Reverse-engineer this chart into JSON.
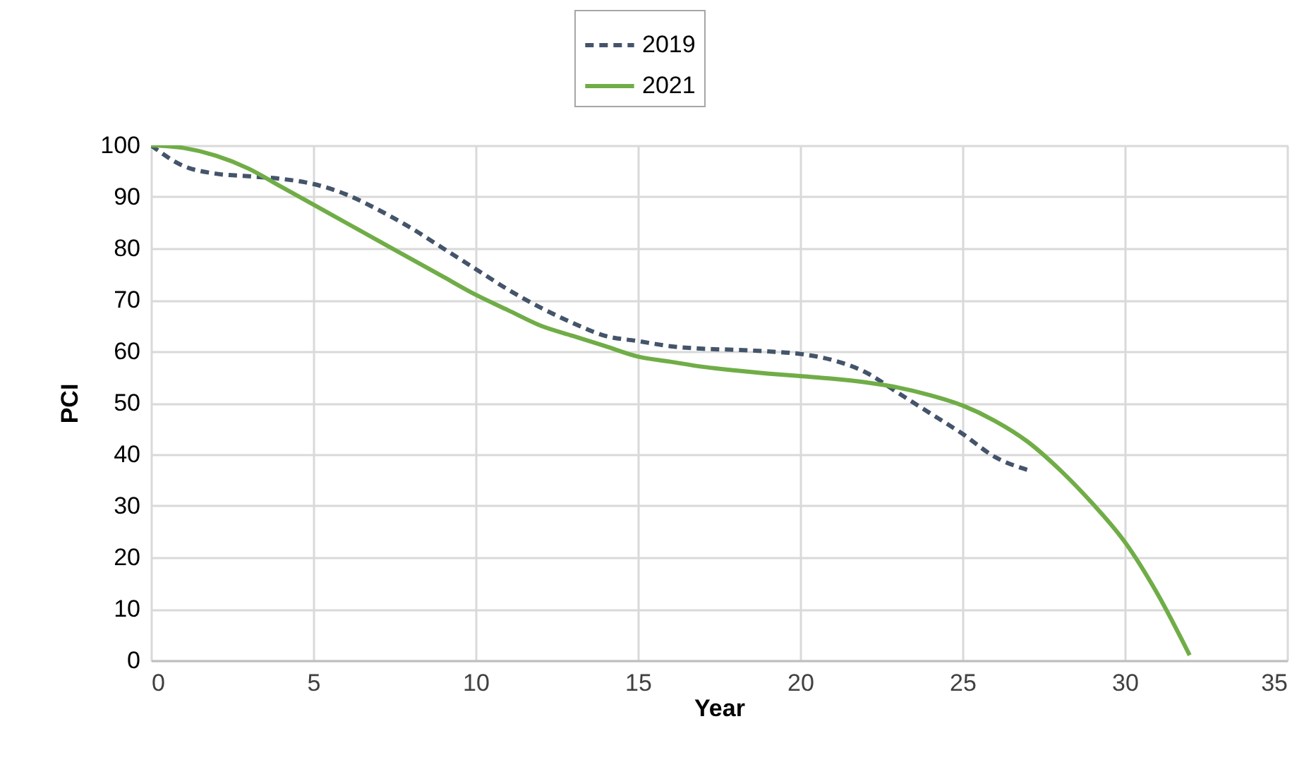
{
  "chart_data": {
    "type": "line",
    "xlabel": "Year",
    "ylabel": "PCI",
    "xlim": [
      0,
      35
    ],
    "xticks": [
      0,
      5,
      10,
      15,
      20,
      25,
      30,
      35
    ],
    "ylim": [
      0,
      100
    ],
    "yticks": [
      0,
      10,
      20,
      30,
      40,
      50,
      60,
      70,
      80,
      90,
      100
    ],
    "grid": true,
    "legend": "top",
    "marker": "none",
    "series": [
      {
        "name": "2019",
        "color": "#44546a",
        "line_style": "dashed",
        "x": [
          0,
          1,
          2,
          3,
          4,
          5,
          6,
          7,
          8,
          9,
          10,
          11,
          12,
          13,
          14,
          15,
          16,
          17,
          18,
          19,
          20,
          21,
          22,
          23,
          24,
          25,
          26,
          27
        ],
        "values": [
          100,
          96,
          94.5,
          94,
          93.5,
          92.5,
          90.5,
          87.5,
          84,
          80,
          76,
          72,
          68.5,
          65.5,
          63,
          62,
          61,
          60.5,
          60.3,
          60,
          59.5,
          58.3,
          56,
          52,
          48,
          44,
          39.5,
          37
        ]
      },
      {
        "name": "2021",
        "color": "#70ad47",
        "line_style": "solid",
        "x": [
          0,
          1,
          2,
          3,
          4,
          5,
          6,
          7,
          8,
          9,
          10,
          11,
          12,
          13,
          14,
          15,
          16,
          17,
          18,
          19,
          20,
          21,
          22,
          23,
          24,
          25,
          26,
          27,
          28,
          29,
          30,
          31,
          32
        ],
        "values": [
          100,
          99.5,
          98,
          95.5,
          92,
          88.5,
          85,
          81.5,
          78,
          74.5,
          71,
          68,
          65,
          63,
          61,
          59,
          58,
          57,
          56.3,
          55.7,
          55.2,
          54.7,
          54,
          53,
          51.5,
          49.5,
          46.5,
          42.5,
          37,
          30.5,
          23,
          13,
          1
        ]
      }
    ]
  }
}
